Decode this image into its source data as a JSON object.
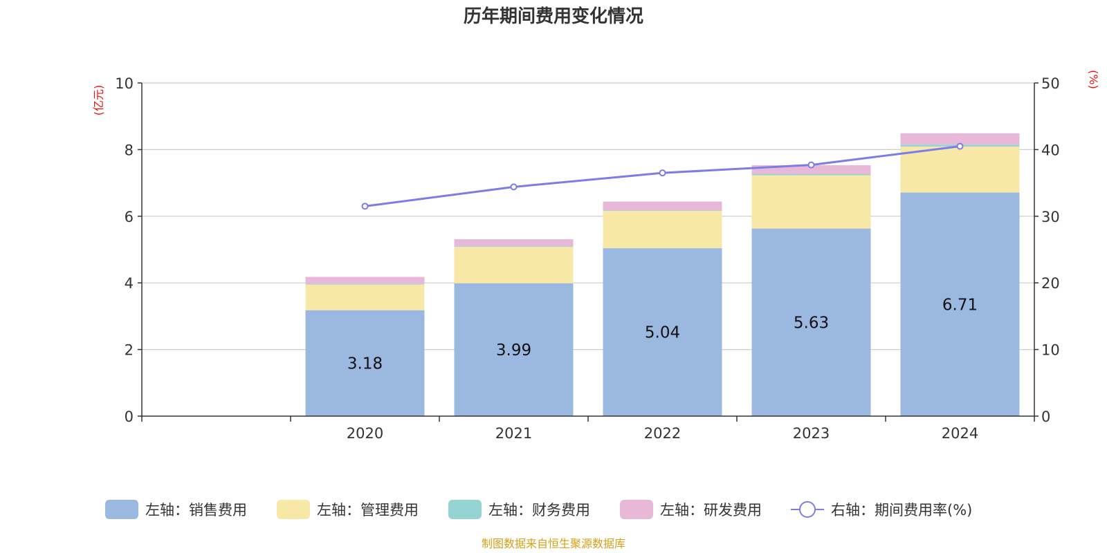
{
  "chart_data": {
    "type": "bar",
    "title": "历年期间费用变化情况",
    "categories": [
      "2020",
      "2021",
      "2022",
      "2023",
      "2024"
    ],
    "left_axis": {
      "unit": "(亿元)",
      "ylim": [
        0,
        10
      ],
      "ticks": [
        "0",
        "2",
        "4",
        "6",
        "8",
        "10"
      ]
    },
    "right_axis": {
      "unit": "(%)",
      "ylim": [
        0,
        50
      ],
      "ticks": [
        "0",
        "10",
        "20",
        "30",
        "40",
        "50"
      ]
    },
    "series": [
      {
        "name": "左轴：销售费用",
        "type": "bar",
        "axis": "left",
        "color": "#9bb8e1",
        "values": [
          3.18,
          3.99,
          5.04,
          5.63,
          6.71
        ],
        "labels": [
          "3.18",
          "3.99",
          "5.04",
          "5.63",
          "6.71"
        ]
      },
      {
        "name": "左轴：管理费用",
        "type": "bar",
        "axis": "left",
        "color": "#f8e8a8",
        "values": [
          0.77,
          1.09,
          1.12,
          1.6,
          1.38
        ]
      },
      {
        "name": "左轴：财务费用",
        "type": "bar",
        "axis": "left",
        "color": "#96d4d4",
        "values": [
          0.02,
          0.02,
          0.02,
          0.04,
          0.06
        ]
      },
      {
        "name": "左轴：研发费用",
        "type": "bar",
        "axis": "left",
        "color": "#e8b8d8",
        "values": [
          0.21,
          0.21,
          0.26,
          0.26,
          0.34
        ]
      },
      {
        "name": "右轴：期间费用率(%)",
        "type": "line",
        "axis": "right",
        "color": "#7b7bea",
        "values": [
          31.5,
          34.4,
          36.5,
          37.7,
          40.5
        ]
      }
    ],
    "grid": true,
    "legend_position": "bottom"
  },
  "source_note": "制图数据来自恒生聚源数据库"
}
